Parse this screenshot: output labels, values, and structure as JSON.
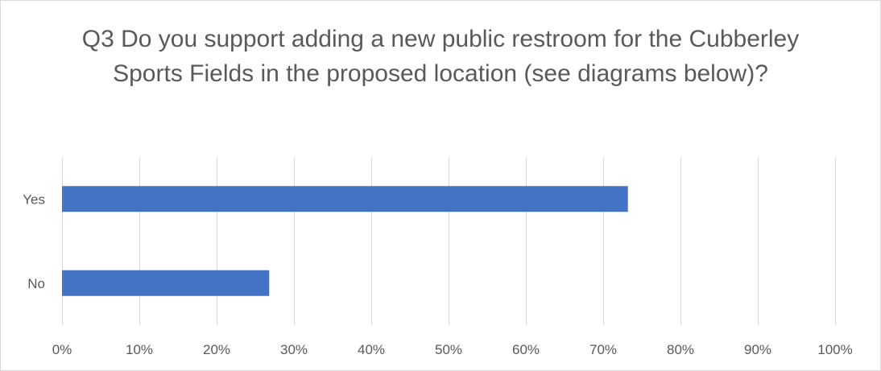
{
  "chart_data": {
    "type": "bar",
    "orientation": "horizontal",
    "title": "Q3 Do you support adding a new public restroom for the Cubberley Sports Fields in the proposed location (see diagrams below)?",
    "categories": [
      "Yes",
      "No"
    ],
    "values": [
      73.2,
      26.8
    ],
    "value_unit": "%",
    "xlim": [
      0,
      100
    ],
    "x_ticks": [
      0,
      10,
      20,
      30,
      40,
      50,
      60,
      70,
      80,
      90,
      100
    ],
    "x_tick_labels": [
      "0%",
      "10%",
      "20%",
      "30%",
      "40%",
      "50%",
      "60%",
      "70%",
      "80%",
      "90%",
      "100%"
    ],
    "grid": true,
    "legend": "none",
    "bar_color": "#4472c4",
    "grid_color": "#d9d9d9",
    "text_color": "#595959"
  }
}
